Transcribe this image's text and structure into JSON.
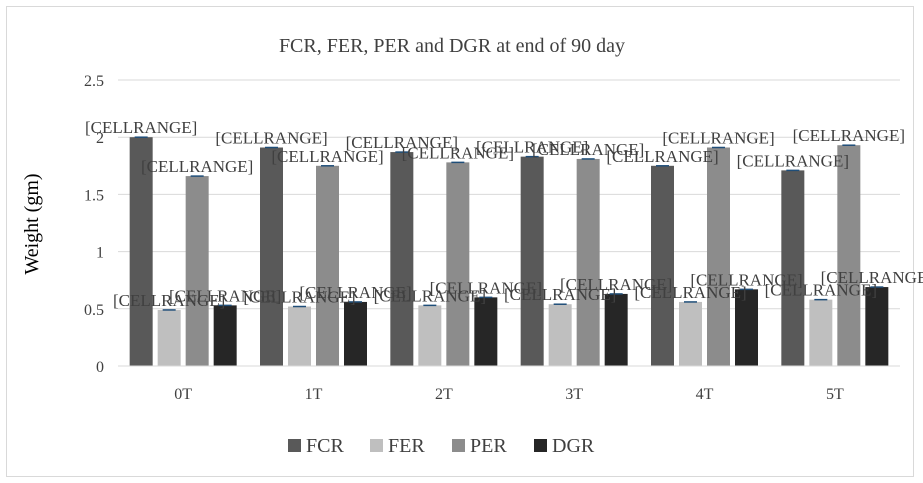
{
  "chart_data": {
    "type": "bar",
    "title": "FCR, FER, PER and DGR at end of 90 day",
    "ylabel": "Weight (gm)",
    "xlabel": "",
    "categories": [
      "0T",
      "1T",
      "2T",
      "3T",
      "4T",
      "5T"
    ],
    "ylim": [
      0,
      2.5
    ],
    "yticks": [
      "0",
      "0.5",
      "1",
      "1.5",
      "2",
      "2.5"
    ],
    "grid": true,
    "legend_position": "bottom",
    "data_label_text": "[CELLRANGE]",
    "series": [
      {
        "name": "FCR",
        "color": "#595959",
        "values": [
          2.0,
          1.91,
          1.87,
          1.83,
          1.75,
          1.71
        ]
      },
      {
        "name": "FER",
        "color": "#bfbfbf",
        "values": [
          0.49,
          0.52,
          0.53,
          0.54,
          0.56,
          0.58
        ]
      },
      {
        "name": "PER",
        "color": "#8c8c8c",
        "values": [
          1.66,
          1.75,
          1.78,
          1.81,
          1.91,
          1.93
        ]
      },
      {
        "name": "DGR",
        "color": "#262626",
        "values": [
          0.53,
          0.56,
          0.6,
          0.63,
          0.67,
          0.69
        ]
      }
    ]
  }
}
